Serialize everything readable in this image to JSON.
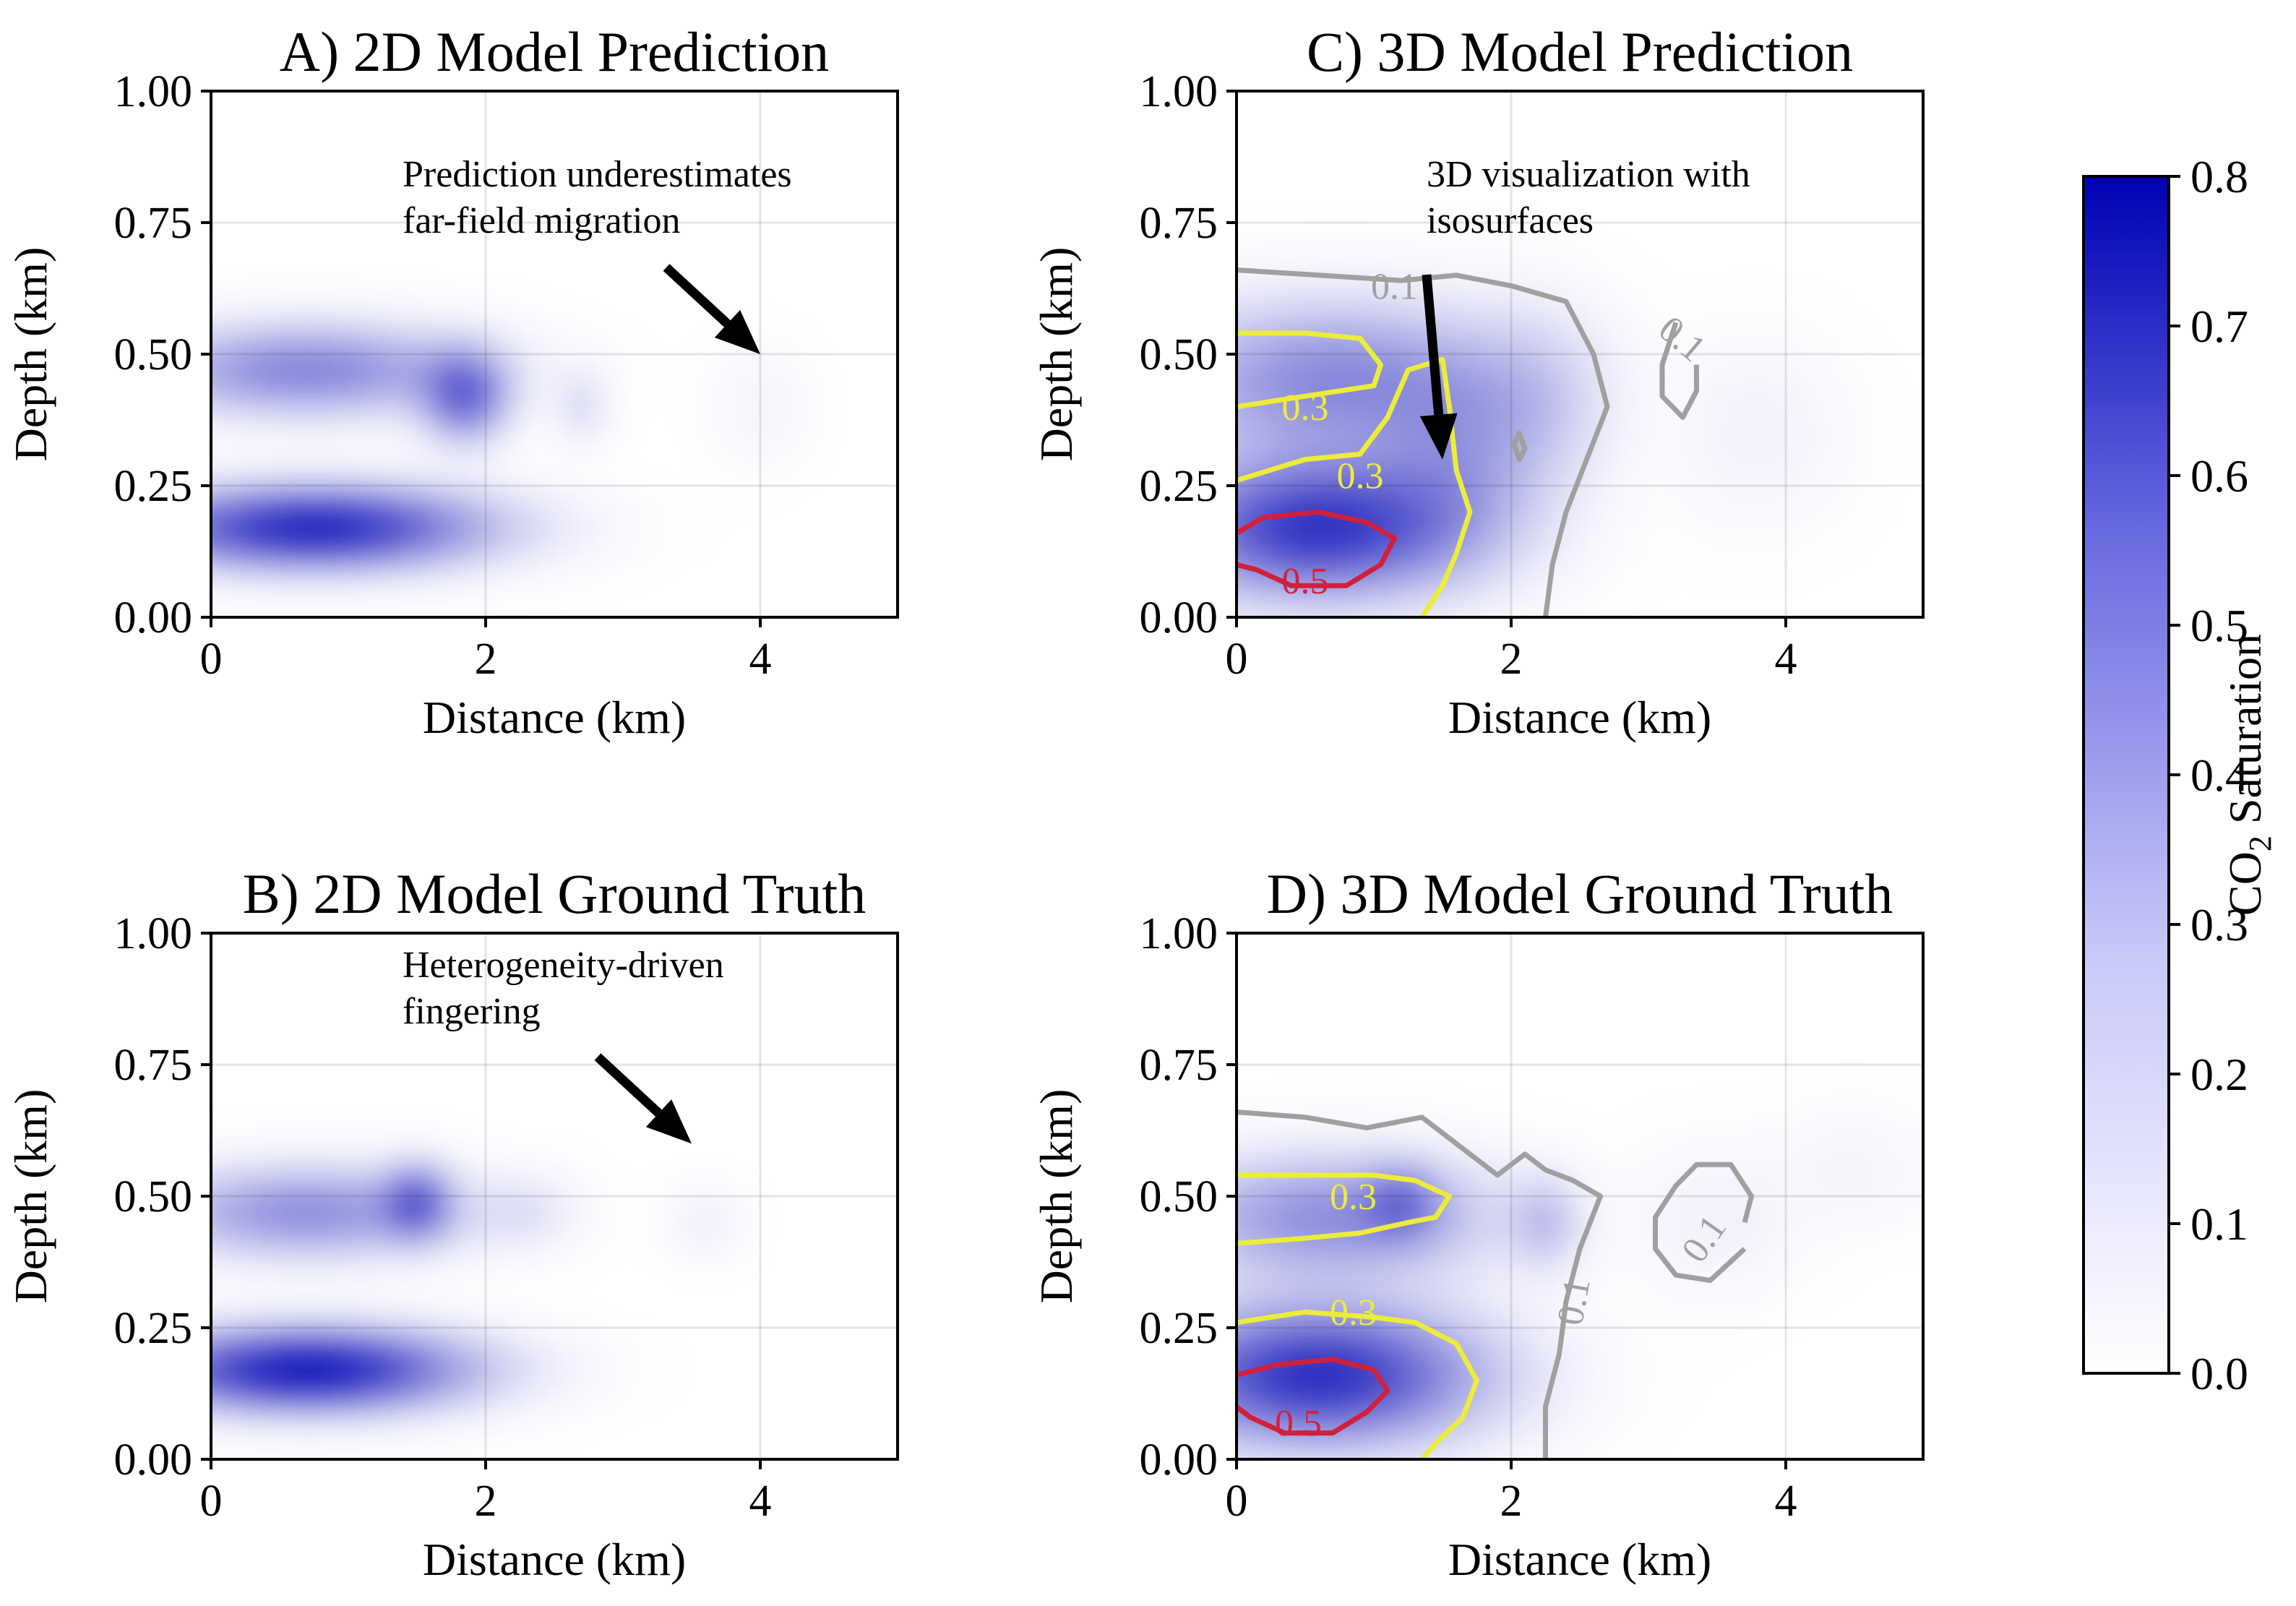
{
  "chart_data": [
    {
      "type": "heatmap",
      "panel": "A",
      "title": "A) 2D Model Prediction",
      "xlabel": "Distance (km)",
      "ylabel": "Depth (km)",
      "xlim": [
        0,
        5
      ],
      "ylim": [
        0,
        1
      ],
      "xticks": [
        "0",
        "2",
        "4"
      ],
      "yticks": [
        "0.00",
        "0.25",
        "0.50",
        "0.75",
        "1.00"
      ],
      "annotation": {
        "text_lines": [
          "Prediction underestimates",
          "far-field migration"
        ],
        "arrow_tip": [
          4.0,
          0.5
        ]
      },
      "plumes": [
        {
          "x": 0.75,
          "y": 0.17,
          "sx": 0.85,
          "sy": 0.055,
          "v": 0.64
        },
        {
          "x": 0.7,
          "y": 0.47,
          "sx": 0.8,
          "sy": 0.06,
          "v": 0.36
        },
        {
          "x": 1.85,
          "y": 0.42,
          "sx": 0.22,
          "sy": 0.06,
          "v": 0.38
        },
        {
          "x": 2.7,
          "y": 0.4,
          "sx": 0.15,
          "sy": 0.05,
          "v": 0.08
        },
        {
          "x": 4.0,
          "y": 0.4,
          "sx": 0.25,
          "sy": 0.08,
          "v": 0.03
        }
      ],
      "contours": []
    },
    {
      "type": "heatmap",
      "panel": "B",
      "title": "B) 2D Model Ground Truth",
      "xlabel": "Distance (km)",
      "ylabel": "Depth (km)",
      "xlim": [
        0,
        5
      ],
      "ylim": [
        0,
        1
      ],
      "xticks": [
        "0",
        "2",
        "4"
      ],
      "yticks": [
        "0.00",
        "0.25",
        "0.50",
        "0.75",
        "1.00"
      ],
      "annotation": {
        "text_lines": [
          "Heterogeneity-driven",
          "fingering"
        ],
        "arrow_tip": [
          3.5,
          0.6
        ]
      },
      "plumes": [
        {
          "x": 0.7,
          "y": 0.17,
          "sx": 0.8,
          "sy": 0.055,
          "v": 0.68
        },
        {
          "x": 0.7,
          "y": 0.47,
          "sx": 0.75,
          "sy": 0.06,
          "v": 0.33
        },
        {
          "x": 1.5,
          "y": 0.49,
          "sx": 0.18,
          "sy": 0.05,
          "v": 0.3
        },
        {
          "x": 2.3,
          "y": 0.47,
          "sx": 0.25,
          "sy": 0.05,
          "v": 0.06
        },
        {
          "x": 3.6,
          "y": 0.45,
          "sx": 0.2,
          "sy": 0.05,
          "v": 0.04
        }
      ],
      "contours": []
    },
    {
      "type": "heatmap",
      "panel": "C",
      "title": "C) 3D Model Prediction",
      "xlabel": "Distance (km)",
      "ylabel": "Depth (km)",
      "xlim": [
        0,
        5
      ],
      "ylim": [
        0,
        1
      ],
      "xticks": [
        "0",
        "2",
        "4"
      ],
      "yticks": [
        "0.00",
        "0.25",
        "0.50",
        "0.75",
        "1.00"
      ],
      "annotation": {
        "text_lines": [
          "3D visualization with",
          "isosurfaces"
        ],
        "arrow_tip": [
          1.5,
          0.3
        ]
      },
      "plumes": [
        {
          "x": 0.6,
          "y": 0.17,
          "sx": 0.75,
          "sy": 0.09,
          "v": 0.62
        },
        {
          "x": 0.7,
          "y": 0.45,
          "sx": 0.85,
          "sy": 0.1,
          "v": 0.36
        },
        {
          "x": 1.6,
          "y": 0.3,
          "sx": 0.4,
          "sy": 0.12,
          "v": 0.18
        },
        {
          "x": 2.2,
          "y": 0.4,
          "sx": 0.35,
          "sy": 0.12,
          "v": 0.12
        },
        {
          "x": 3.8,
          "y": 0.35,
          "sx": 0.45,
          "sy": 0.12,
          "v": 0.04
        }
      ],
      "contours": [
        {
          "level": 0.1,
          "color": "#a0a0a0",
          "label": "0.1",
          "label_at": [
            1.15,
            0.63
          ],
          "label_rot": 0,
          "points": [
            [
              0,
              0.66
            ],
            [
              0.6,
              0.65
            ],
            [
              1.2,
              0.64
            ],
            [
              1.6,
              0.65
            ],
            [
              2.0,
              0.63
            ],
            [
              2.4,
              0.6
            ],
            [
              2.6,
              0.5
            ],
            [
              2.7,
              0.4
            ],
            [
              2.55,
              0.3
            ],
            [
              2.4,
              0.2
            ],
            [
              2.3,
              0.1
            ],
            [
              2.25,
              0.0
            ]
          ]
        },
        {
          "level": 0.1,
          "color": "#a0a0a0",
          "label": "0.1",
          "label_at": [
            3.25,
            0.53
          ],
          "label_rot": 40,
          "points": [
            [
              3.2,
              0.56
            ],
            [
              3.1,
              0.48
            ],
            [
              3.1,
              0.42
            ],
            [
              3.25,
              0.38
            ],
            [
              3.35,
              0.43
            ],
            [
              3.35,
              0.48
            ]
          ]
        },
        {
          "level": 0.1,
          "color": "#a0a0a0",
          "label": "",
          "label_at": [
            0,
            0
          ],
          "label_rot": 0,
          "points": [
            [
              2.02,
              0.33
            ],
            [
              2.06,
              0.35
            ],
            [
              2.1,
              0.32
            ],
            [
              2.06,
              0.3
            ],
            [
              2.02,
              0.33
            ]
          ]
        },
        {
          "level": 0.3,
          "color": "#ecec3a",
          "label": "0.3",
          "label_at": [
            0.5,
            0.4
          ],
          "label_rot": 0,
          "points": [
            [
              0,
              0.54
            ],
            [
              0.5,
              0.54
            ],
            [
              0.9,
              0.53
            ],
            [
              1.05,
              0.48
            ],
            [
              1.0,
              0.44
            ],
            [
              0.5,
              0.42
            ],
            [
              0,
              0.4
            ]
          ]
        },
        {
          "level": 0.3,
          "color": "#ecec3a",
          "label": "0.3",
          "label_at": [
            0.9,
            0.27
          ],
          "label_rot": 0,
          "points": [
            [
              0,
              0.26
            ],
            [
              0.5,
              0.3
            ],
            [
              0.9,
              0.31
            ],
            [
              1.1,
              0.38
            ],
            [
              1.25,
              0.47
            ],
            [
              1.5,
              0.49
            ],
            [
              1.55,
              0.4
            ],
            [
              1.6,
              0.28
            ],
            [
              1.7,
              0.2
            ],
            [
              1.6,
              0.12
            ],
            [
              1.5,
              0.06
            ],
            [
              1.35,
              0.0
            ]
          ]
        },
        {
          "level": 0.5,
          "color": "#d0213c",
          "label": "0.5",
          "label_at": [
            0.5,
            0.07
          ],
          "label_rot": 0,
          "points": [
            [
              0,
              0.16
            ],
            [
              0.2,
              0.19
            ],
            [
              0.6,
              0.2
            ],
            [
              0.95,
              0.18
            ],
            [
              1.15,
              0.15
            ],
            [
              1.05,
              0.1
            ],
            [
              0.8,
              0.06
            ],
            [
              0.4,
              0.06
            ],
            [
              0.15,
              0.09
            ],
            [
              0,
              0.1
            ]
          ]
        }
      ]
    },
    {
      "type": "heatmap",
      "panel": "D",
      "title": "D) 3D Model Ground Truth",
      "xlabel": "Distance (km)",
      "ylabel": "Depth (km)",
      "xlim": [
        0,
        5
      ],
      "ylim": [
        0,
        1
      ],
      "xticks": [
        "0",
        "2",
        "4"
      ],
      "yticks": [
        "0.00",
        "0.25",
        "0.50",
        "0.75",
        "1.00"
      ],
      "annotation": null,
      "plumes": [
        {
          "x": 0.6,
          "y": 0.16,
          "sx": 0.8,
          "sy": 0.09,
          "v": 0.64
        },
        {
          "x": 0.7,
          "y": 0.46,
          "sx": 0.8,
          "sy": 0.08,
          "v": 0.34
        },
        {
          "x": 1.2,
          "y": 0.49,
          "sx": 0.2,
          "sy": 0.05,
          "v": 0.2
        },
        {
          "x": 2.25,
          "y": 0.45,
          "sx": 0.18,
          "sy": 0.06,
          "v": 0.14
        },
        {
          "x": 3.5,
          "y": 0.45,
          "sx": 0.4,
          "sy": 0.1,
          "v": 0.04
        },
        {
          "x": 4.5,
          "y": 0.55,
          "sx": 0.4,
          "sy": 0.08,
          "v": 0.03
        }
      ],
      "contours": [
        {
          "level": 0.1,
          "color": "#a0a0a0",
          "label": "0.1",
          "label_at": [
            2.45,
            0.3
          ],
          "label_rot": -80,
          "points": [
            [
              0,
              0.66
            ],
            [
              0.5,
              0.65
            ],
            [
              0.95,
              0.63
            ],
            [
              1.35,
              0.65
            ],
            [
              1.6,
              0.6
            ],
            [
              1.9,
              0.54
            ],
            [
              2.1,
              0.58
            ],
            [
              2.25,
              0.55
            ],
            [
              2.45,
              0.53
            ],
            [
              2.65,
              0.5
            ],
            [
              2.5,
              0.4
            ],
            [
              2.4,
              0.3
            ],
            [
              2.35,
              0.2
            ],
            [
              2.25,
              0.1
            ],
            [
              2.25,
              0.0
            ]
          ]
        },
        {
          "level": 0.1,
          "color": "#a0a0a0",
          "label": "0.1",
          "label_at": [
            3.4,
            0.42
          ],
          "label_rot": -55,
          "points": [
            [
              3.7,
              0.45
            ],
            [
              3.75,
              0.5
            ],
            [
              3.6,
              0.56
            ],
            [
              3.35,
              0.56
            ],
            [
              3.2,
              0.52
            ],
            [
              3.05,
              0.46
            ],
            [
              3.05,
              0.4
            ],
            [
              3.2,
              0.35
            ],
            [
              3.45,
              0.34
            ],
            [
              3.7,
              0.4
            ]
          ]
        },
        {
          "level": 0.3,
          "color": "#ecec3a",
          "label": "0.3",
          "label_at": [
            0.85,
            0.5
          ],
          "label_rot": 0,
          "points": [
            [
              0,
              0.54
            ],
            [
              0.5,
              0.54
            ],
            [
              1.0,
              0.54
            ],
            [
              1.3,
              0.53
            ],
            [
              1.55,
              0.5
            ],
            [
              1.45,
              0.46
            ],
            [
              1.25,
              0.45
            ],
            [
              0.9,
              0.43
            ],
            [
              0.5,
              0.42
            ],
            [
              0,
              0.41
            ]
          ]
        },
        {
          "level": 0.3,
          "color": "#ecec3a",
          "label": "0.3",
          "label_at": [
            0.85,
            0.28
          ],
          "label_rot": 0,
          "points": [
            [
              0,
              0.26
            ],
            [
              0.5,
              0.28
            ],
            [
              1.0,
              0.27
            ],
            [
              1.3,
              0.26
            ],
            [
              1.6,
              0.22
            ],
            [
              1.75,
              0.15
            ],
            [
              1.65,
              0.08
            ],
            [
              1.45,
              0.03
            ],
            [
              1.35,
              0.0
            ]
          ]
        },
        {
          "level": 0.5,
          "color": "#d0213c",
          "label": "0.5",
          "label_at": [
            0.45,
            0.07
          ],
          "label_rot": 0,
          "points": [
            [
              0,
              0.16
            ],
            [
              0.3,
              0.18
            ],
            [
              0.7,
              0.19
            ],
            [
              1.0,
              0.17
            ],
            [
              1.1,
              0.13
            ],
            [
              0.95,
              0.09
            ],
            [
              0.7,
              0.05
            ],
            [
              0.35,
              0.05
            ],
            [
              0.1,
              0.08
            ],
            [
              0,
              0.1
            ]
          ]
        }
      ]
    }
  ],
  "colorbar": {
    "label_prefix": "CO",
    "label_sub": "2",
    "label_suffix": " Saturation",
    "vmin": 0.0,
    "vmax": 0.8,
    "ticks": [
      "0.0",
      "0.1",
      "0.2",
      "0.3",
      "0.4",
      "0.5",
      "0.6",
      "0.7",
      "0.8"
    ],
    "color_low": "#ffffff",
    "color_high": "#0000b4"
  }
}
